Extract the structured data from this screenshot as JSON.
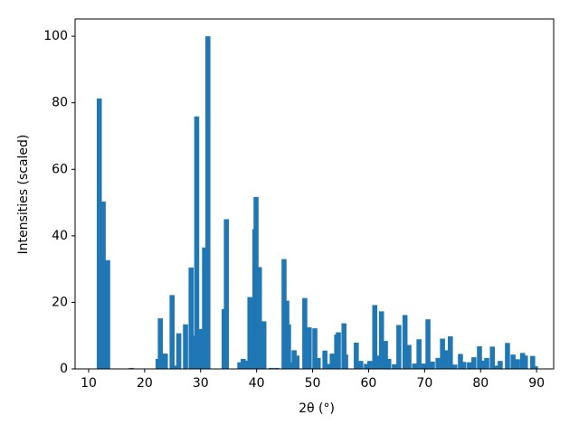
{
  "chart_data": {
    "type": "bar",
    "xlabel": "2θ (°)",
    "ylabel": "Intensities (scaled)",
    "color": "#1f77b4",
    "x": [
      11.9,
      12.6,
      13.4,
      17.6,
      22.4,
      22.8,
      23.7,
      24.9,
      25.3,
      26.1,
      27.3,
      28.3,
      28.7,
      29.3,
      29.9,
      30.7,
      31.3,
      34.2,
      34.6,
      37.0,
      37.6,
      38.1,
      38.8,
      39.4,
      39.7,
      39.9,
      40.5,
      41.3,
      42.6,
      43.6,
      44.9,
      45.4,
      45.7,
      46.2,
      46.7,
      47.2,
      48.6,
      49.4,
      50.4,
      51.0,
      52.2,
      52.8,
      53.5,
      54.3,
      54.6,
      55.6,
      55.9,
      57.8,
      58.6,
      59.6,
      60.2,
      61.1,
      61.5,
      62.3,
      63.0,
      63.6,
      64.6,
      65.4,
      66.5,
      67.2,
      68.2,
      69.0,
      69.9,
      70.6,
      71.4,
      72.4,
      73.2,
      73.7,
      74.6,
      75.4,
      76.4,
      77.0,
      78.0,
      78.8,
      79.8,
      80.4,
      81.1,
      82.1,
      82.9,
      83.5,
      84.8,
      85.8,
      86.6,
      87.5,
      88.0,
      89.3,
      89.8
    ],
    "values": [
      81.3,
      50.3,
      32.7,
      0.3,
      3,
      15.2,
      4.6,
      22.2,
      1,
      10.7,
      13.4,
      30.5,
      10,
      75.9,
      12,
      36.5,
      100,
      18,
      45,
      2,
      3,
      2.5,
      21.6,
      7,
      42,
      51.7,
      30.6,
      14.3,
      0.3,
      0.3,
      33,
      20.5,
      13.4,
      2,
      5.6,
      4,
      21.3,
      12.5,
      12.2,
      3.3,
      5.5,
      1.5,
      4.6,
      10.3,
      11,
      13.7,
      4.3,
      7.9,
      2.4,
      1.5,
      2.4,
      19.2,
      4,
      17.3,
      8.4,
      3,
      1.4,
      13.2,
      16.2,
      7.2,
      1.6,
      8.9,
      1.6,
      14.9,
      2.2,
      3.3,
      9.1,
      5.6,
      9.8,
      1.3,
      4.5,
      2.1,
      2,
      3.5,
      6.8,
      2.5,
      3.3,
      6.7,
      1,
      2.4,
      7.8,
      4.3,
      2.9,
      4.8,
      4,
      3.9,
      0.8
    ],
    "xlim": [
      7.58,
      93.05
    ],
    "xticks": [
      10,
      20,
      30,
      40,
      50,
      60,
      70,
      80,
      90
    ],
    "ylim": [
      0,
      105.2
    ],
    "yticks": [
      0,
      20,
      40,
      60,
      80,
      100
    ]
  }
}
